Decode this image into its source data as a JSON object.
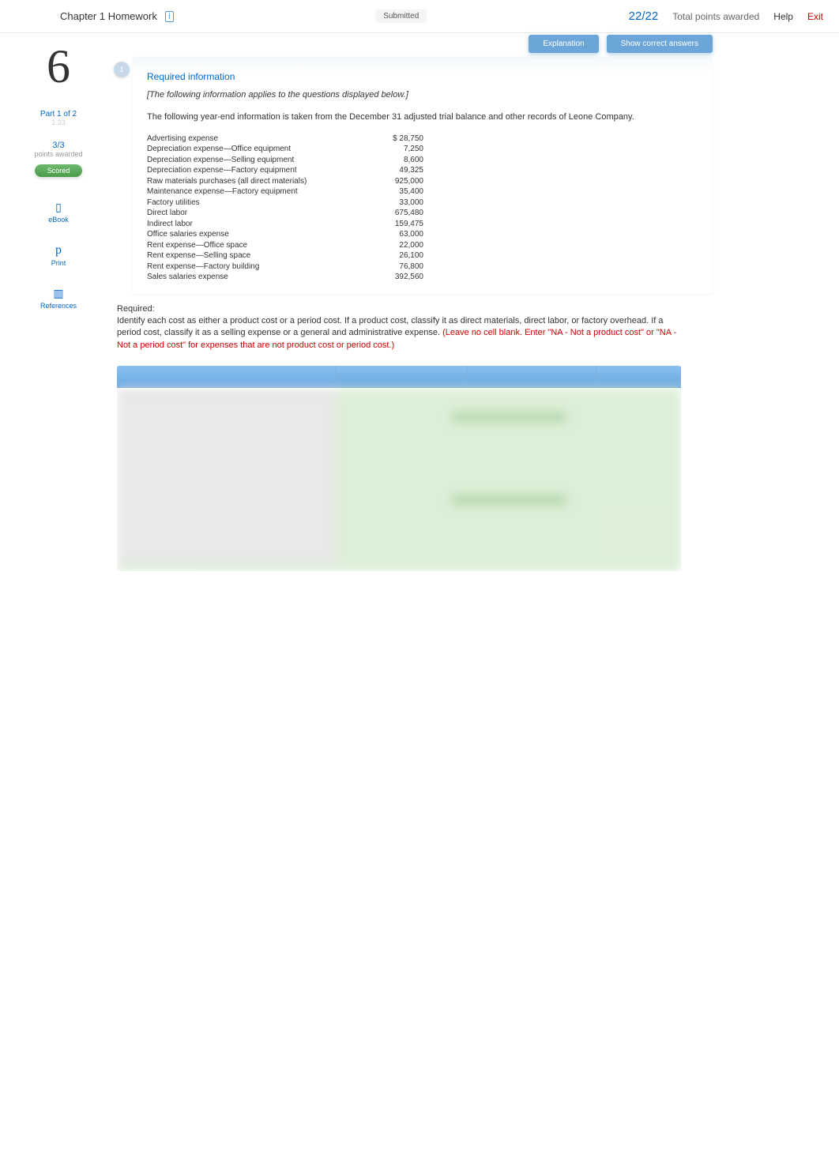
{
  "header": {
    "title": "Chapter 1 Homework",
    "status": "Submitted",
    "score": "22/22",
    "score_label": "Total points awarded",
    "help": "Help",
    "exit": "Exit"
  },
  "actions": {
    "explanation": "Explanation",
    "show_answers": "Show correct answers"
  },
  "sidebar": {
    "question_number": "6",
    "step_badge": "1",
    "part_label": "Part 1  of 2",
    "part_sub": "1.33",
    "pts_score": "3/3",
    "pts_awarded": "points awarded",
    "scored": "Scored",
    "tools": [
      {
        "icon": "📖",
        "label": "eBook"
      },
      {
        "icon": "p",
        "label": "Print"
      },
      {
        "icon": "▥",
        "label": "References"
      }
    ]
  },
  "content": {
    "req_title": "Required information",
    "intro": "[The following information applies to the questions displayed below.]",
    "body": "The following year-end information is taken from the December 31 adjusted trial balance and other records of Leone Company.",
    "rows": [
      {
        "label": "Advertising expense",
        "value": "$ 28,750"
      },
      {
        "label": "Depreciation expense—Office equipment",
        "value": "7,250"
      },
      {
        "label": "Depreciation expense—Selling equipment",
        "value": "8,600"
      },
      {
        "label": "Depreciation expense—Factory equipment",
        "value": "49,325"
      },
      {
        "label": "Raw materials purchases (all direct materials)",
        "value": "925,000"
      },
      {
        "label": "Maintenance expense—Factory equipment",
        "value": "35,400"
      },
      {
        "label": "Factory utilities",
        "value": "33,000"
      },
      {
        "label": "Direct labor",
        "value": "675,480"
      },
      {
        "label": "Indirect labor",
        "value": "159,475"
      },
      {
        "label": "Office salaries expense",
        "value": "63,000"
      },
      {
        "label": "Rent expense—Office space",
        "value": "22,000"
      },
      {
        "label": "Rent expense—Selling space",
        "value": "26,100"
      },
      {
        "label": "Rent expense—Factory building",
        "value": "76,800"
      },
      {
        "label": "Sales salaries expense",
        "value": "392,560"
      }
    ],
    "instructions_label": "Required:",
    "instructions_main": "Identify each cost as either a product cost or a period cost. If a product cost, classify it as direct materials, direct labor, or factory overhead. If a period cost, classify it as a selling expense or a general and administrative expense.",
    "instructions_red": " (Leave no cell blank. Enter \"NA - Not a product cost\" or \"NA - Not a period cost\" for expenses that are not product cost or period cost.)"
  },
  "answer_table": {
    "col_widths": [
      "39%",
      "23%",
      "23%",
      "15%"
    ],
    "header_bg": "#7ab3e5",
    "body_bg": "#d5ecd0",
    "row_count": 15
  },
  "colors": {
    "link_blue": "#0066cc",
    "exit_red": "#cc0000",
    "scored_green": "#5aad5a",
    "action_blue": "#6ca6d9"
  }
}
